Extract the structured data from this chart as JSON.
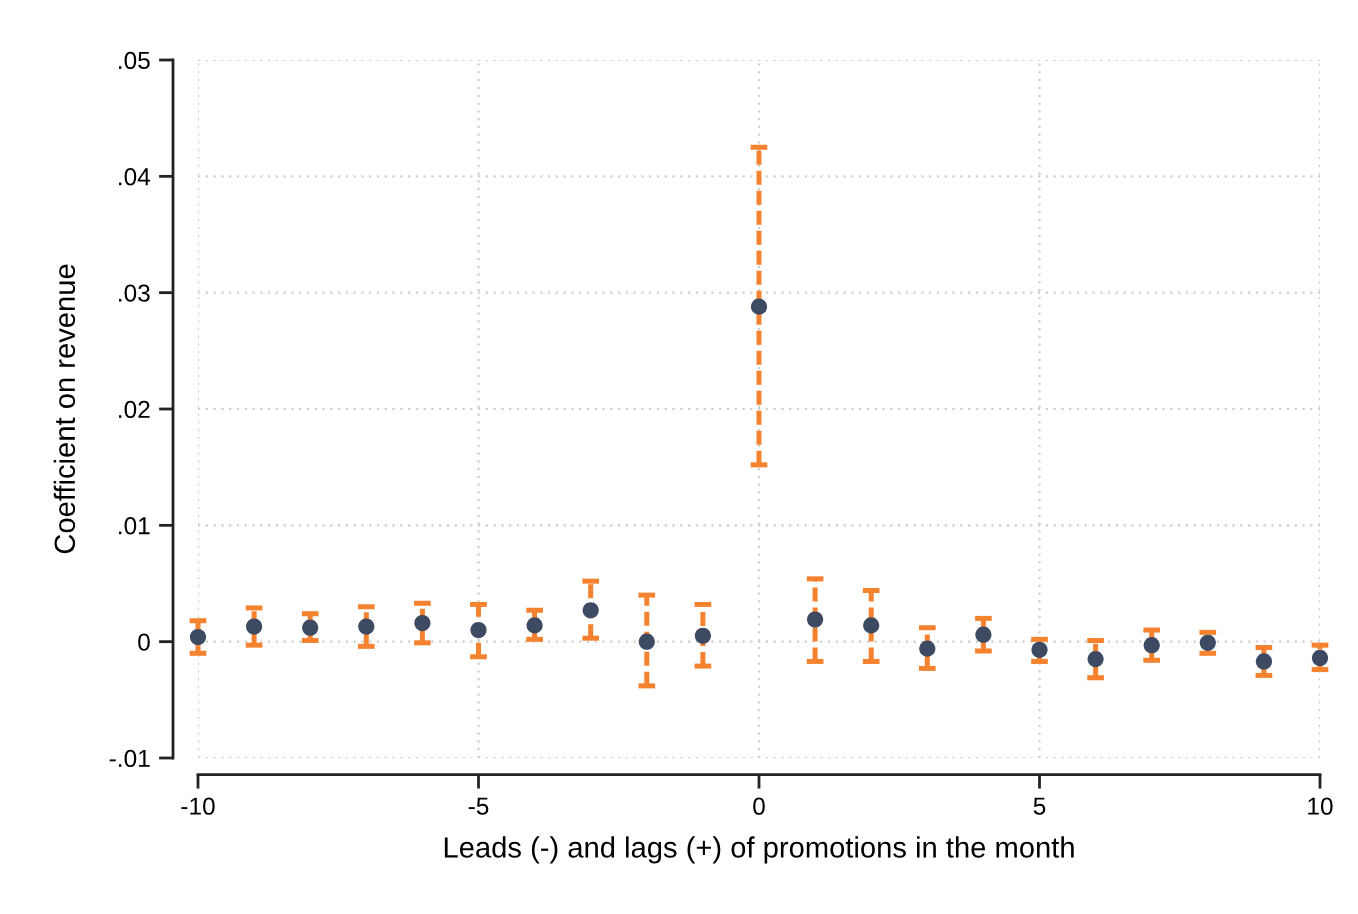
{
  "chart_data": {
    "type": "scatter",
    "xlabel": "Leads (-) and lags (+) of promotions in the month",
    "ylabel": "Coefficient on revenue",
    "x": [
      -10,
      -9,
      -8,
      -7,
      -6,
      -5,
      -4,
      -3,
      -2,
      -1,
      0,
      1,
      2,
      3,
      4,
      5,
      6,
      7,
      8,
      9,
      10
    ],
    "series": [
      {
        "color": "#f5822e",
        "colors": [
          "#3e4a62",
          "#3e4a62",
          "#3e4a62",
          "#3e4a62",
          "#3e4a62",
          "#3e4a62",
          "#3e4a62",
          "#3e4a62",
          "#3e4a62",
          "#3e4a62",
          "#3e4a62",
          "#3e4a62",
          "#3e4a62",
          "#3e4a62",
          "#3e4a62",
          "#3e4a62",
          "#3e4a62",
          "#3e4a62",
          "#3e4a62",
          "#3e4a62",
          "#3e4a62"
        ],
        "values": [
          0.0004,
          0.0013,
          0.0012,
          0.0013,
          0.0016,
          0.001,
          0.0014,
          0.0027,
          0.0,
          0.0005,
          0.0288,
          0.0019,
          0.0014,
          -0.0006,
          0.0006,
          -0.0007,
          -0.0015,
          -0.0003,
          -0.0001,
          -0.0017,
          -0.0014
        ],
        "errors": [
          [
            -0.001,
            0.0018
          ],
          [
            -0.0003,
            0.0029
          ],
          [
            0.0001,
            0.0024
          ],
          [
            -0.0004,
            0.003
          ],
          [
            -0.0001,
            0.0033
          ],
          [
            -0.0013,
            0.0032
          ],
          [
            0.0002,
            0.0027
          ],
          [
            0.0003,
            0.0052
          ],
          [
            -0.0038,
            0.004
          ],
          [
            -0.0021,
            0.0032
          ],
          [
            0.0152,
            0.0425
          ],
          [
            -0.0017,
            0.0054
          ],
          [
            -0.0017,
            0.0044
          ],
          [
            -0.0023,
            0.0012
          ],
          [
            -0.0008,
            0.002
          ],
          [
            -0.0017,
            0.0002
          ],
          [
            -0.0031,
            0.0001
          ],
          [
            -0.0016,
            0.001
          ],
          [
            -0.001,
            0.0008
          ],
          [
            -0.0029,
            -0.0005
          ],
          [
            -0.0024,
            -0.0003
          ]
        ]
      }
    ],
    "xlim": [
      -10,
      10
    ],
    "ylim": [
      -0.01,
      0.05
    ],
    "xticks": [
      -10,
      -5,
      0,
      5,
      10
    ],
    "yticks": [
      {
        "value": -0.01,
        "label": "-.01"
      },
      {
        "value": 0,
        "label": "0"
      },
      {
        "value": 0.01,
        "label": ".01"
      },
      {
        "value": 0.02,
        "label": ".02"
      },
      {
        "value": 0.03,
        "label": ".03"
      },
      {
        "value": 0.04,
        "label": ".04"
      },
      {
        "value": 0.05,
        "label": ".05"
      }
    ],
    "grid": true,
    "marker": "circle",
    "line_style": "dashed"
  }
}
